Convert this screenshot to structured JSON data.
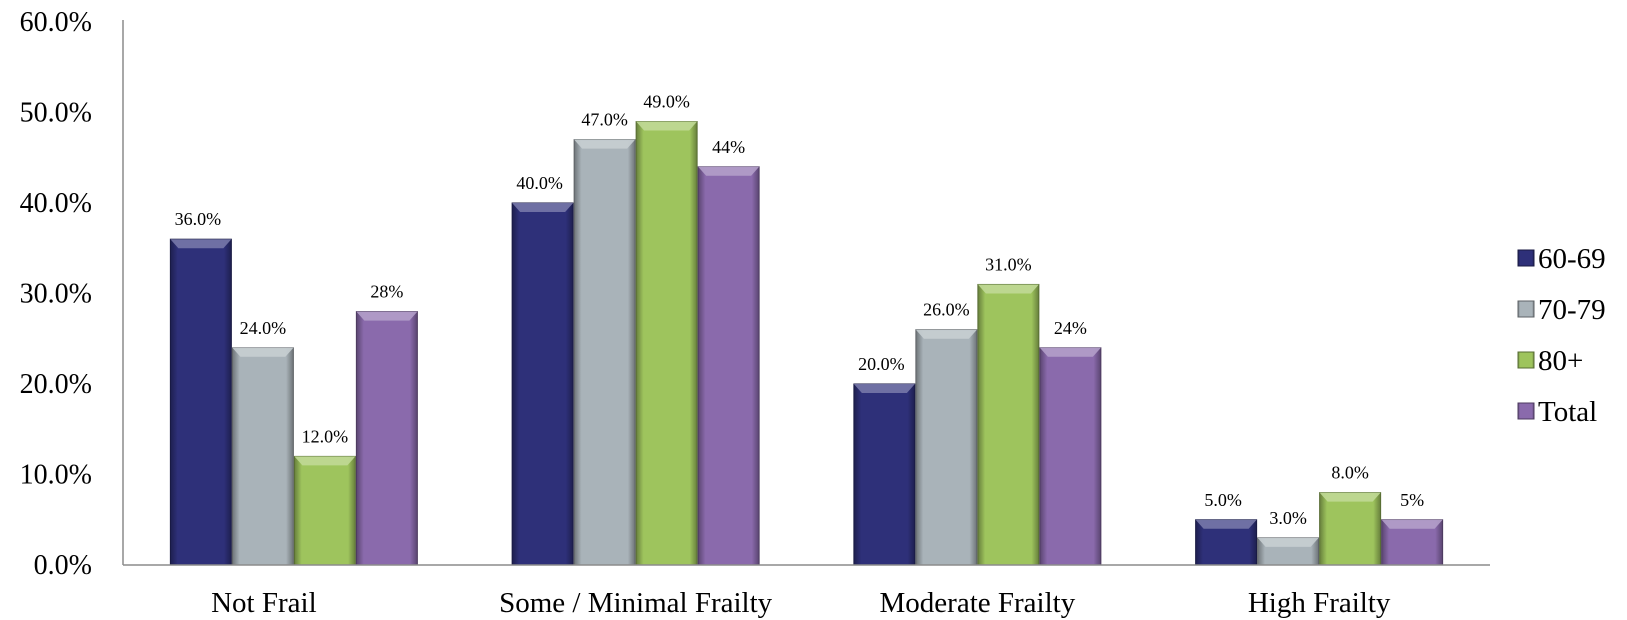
{
  "chart_data": {
    "type": "bar",
    "categories": [
      "Not Frail",
      "Some / Minimal Frailty",
      "Moderate Frailty",
      "High Frailty"
    ],
    "series": [
      {
        "name": "60-69",
        "values": [
          36.0,
          40.0,
          20.0,
          5.0
        ],
        "labels": [
          "36.0%",
          "40.0%",
          "20.0%",
          "5.0%"
        ],
        "color": "#2e3079"
      },
      {
        "name": "70-79",
        "values": [
          24.0,
          47.0,
          26.0,
          3.0
        ],
        "labels": [
          "24.0%",
          "47.0%",
          "26.0%",
          "3.0%"
        ],
        "color": "#a9b3b9"
      },
      {
        "name": "80+",
        "values": [
          12.0,
          49.0,
          31.0,
          8.0
        ],
        "labels": [
          "12.0%",
          "49.0%",
          "31.0%",
          "8.0%"
        ],
        "color": "#9ec45d"
      },
      {
        "name": "Total",
        "values": [
          28.0,
          44.0,
          24.0,
          5.0
        ],
        "labels": [
          "28%",
          "44%",
          "24%",
          "5%"
        ],
        "color": "#8a6aac"
      }
    ],
    "yticks": [
      "0.0%",
      "10.0%",
      "20.0%",
      "30.0%",
      "40.0%",
      "50.0%",
      "60.0%"
    ],
    "ylim": [
      0,
      60
    ],
    "title": "",
    "xlabel": "",
    "ylabel": "",
    "grid": false,
    "legend": "right"
  }
}
